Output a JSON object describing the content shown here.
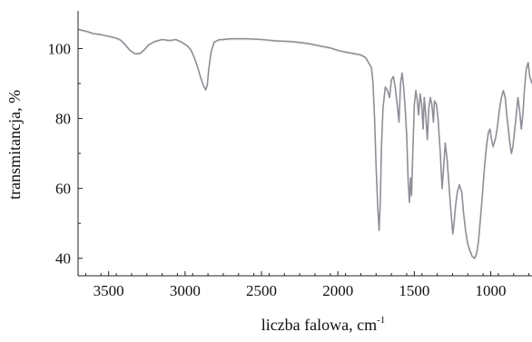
{
  "chart_data": {
    "type": "line",
    "title": "",
    "xlabel": "liczba falowa, cm",
    "xlabel_superscript": "-1",
    "ylabel": "transmitancja, %",
    "x_reversed": true,
    "xlim": [
      3700,
      730
    ],
    "ylim": [
      35,
      110
    ],
    "xticks": [
      3500,
      3000,
      2500,
      2000,
      1500,
      1000
    ],
    "yticks": [
      40,
      60,
      80,
      100
    ],
    "grid": false,
    "legend": "none",
    "series_color": "#8e8e97",
    "series": [
      {
        "points": [
          [
            3700,
            105.5
          ],
          [
            3650,
            105
          ],
          [
            3600,
            104.3
          ],
          [
            3550,
            104
          ],
          [
            3500,
            103.5
          ],
          [
            3450,
            103
          ],
          [
            3420,
            102.4
          ],
          [
            3390,
            101
          ],
          [
            3360,
            99.5
          ],
          [
            3330,
            98.6
          ],
          [
            3300,
            98.5
          ],
          [
            3270,
            99.5
          ],
          [
            3240,
            101
          ],
          [
            3200,
            102
          ],
          [
            3150,
            102.6
          ],
          [
            3100,
            102.3
          ],
          [
            3060,
            102.6
          ],
          [
            3020,
            101.8
          ],
          [
            3000,
            101.2
          ],
          [
            2980,
            100.6
          ],
          [
            2960,
            99.5
          ],
          [
            2940,
            97.5
          ],
          [
            2920,
            95
          ],
          [
            2900,
            92
          ],
          [
            2880,
            89.5
          ],
          [
            2865,
            88.2
          ],
          [
            2855,
            89.5
          ],
          [
            2845,
            94
          ],
          [
            2830,
            99
          ],
          [
            2810,
            101.8
          ],
          [
            2780,
            102.5
          ],
          [
            2700,
            102.8
          ],
          [
            2600,
            102.8
          ],
          [
            2500,
            102.6
          ],
          [
            2400,
            102.2
          ],
          [
            2300,
            102
          ],
          [
            2200,
            101.5
          ],
          [
            2100,
            100.6
          ],
          [
            2050,
            100.2
          ],
          [
            2000,
            99.5
          ],
          [
            1950,
            99
          ],
          [
            1900,
            98.6
          ],
          [
            1850,
            98.2
          ],
          [
            1820,
            97.5
          ],
          [
            1800,
            96
          ],
          [
            1780,
            94.5
          ],
          [
            1770,
            90
          ],
          [
            1760,
            80
          ],
          [
            1750,
            66
          ],
          [
            1740,
            55
          ],
          [
            1730,
            48
          ],
          [
            1722,
            57
          ],
          [
            1715,
            72
          ],
          [
            1705,
            83
          ],
          [
            1690,
            89
          ],
          [
            1675,
            88
          ],
          [
            1662,
            86
          ],
          [
            1650,
            91
          ],
          [
            1637,
            92
          ],
          [
            1625,
            89
          ],
          [
            1612,
            84
          ],
          [
            1600,
            79
          ],
          [
            1590,
            90
          ],
          [
            1580,
            93
          ],
          [
            1570,
            89
          ],
          [
            1560,
            83
          ],
          [
            1550,
            75
          ],
          [
            1540,
            62
          ],
          [
            1532,
            56
          ],
          [
            1525,
            63
          ],
          [
            1518,
            58
          ],
          [
            1510,
            70
          ],
          [
            1500,
            84
          ],
          [
            1490,
            88
          ],
          [
            1480,
            85
          ],
          [
            1472,
            81
          ],
          [
            1462,
            87
          ],
          [
            1452,
            84
          ],
          [
            1442,
            77
          ],
          [
            1435,
            86
          ],
          [
            1425,
            81
          ],
          [
            1415,
            74
          ],
          [
            1405,
            83
          ],
          [
            1395,
            86
          ],
          [
            1385,
            84
          ],
          [
            1375,
            79
          ],
          [
            1368,
            85
          ],
          [
            1355,
            84
          ],
          [
            1345,
            80
          ],
          [
            1330,
            70
          ],
          [
            1318,
            60
          ],
          [
            1308,
            66
          ],
          [
            1298,
            73
          ],
          [
            1285,
            68
          ],
          [
            1272,
            60
          ],
          [
            1260,
            53
          ],
          [
            1248,
            47
          ],
          [
            1240,
            50
          ],
          [
            1230,
            55
          ],
          [
            1218,
            59
          ],
          [
            1205,
            61
          ],
          [
            1190,
            59
          ],
          [
            1178,
            53
          ],
          [
            1165,
            48
          ],
          [
            1150,
            44
          ],
          [
            1135,
            42
          ],
          [
            1120,
            40.5
          ],
          [
            1105,
            40
          ],
          [
            1092,
            41.5
          ],
          [
            1080,
            45
          ],
          [
            1068,
            51
          ],
          [
            1055,
            58
          ],
          [
            1045,
            64
          ],
          [
            1035,
            69
          ],
          [
            1025,
            73
          ],
          [
            1015,
            76
          ],
          [
            1005,
            77
          ],
          [
            995,
            74
          ],
          [
            985,
            72
          ],
          [
            970,
            74
          ],
          [
            958,
            77
          ],
          [
            945,
            82
          ],
          [
            930,
            86
          ],
          [
            918,
            88
          ],
          [
            905,
            86
          ],
          [
            895,
            81
          ],
          [
            885,
            77
          ],
          [
            875,
            73
          ],
          [
            865,
            70
          ],
          [
            855,
            72
          ],
          [
            845,
            76
          ],
          [
            835,
            80
          ],
          [
            822,
            86
          ],
          [
            810,
            82
          ],
          [
            800,
            77
          ],
          [
            790,
            81
          ],
          [
            780,
            88
          ],
          [
            768,
            94
          ],
          [
            755,
            96
          ],
          [
            745,
            92
          ],
          [
            730,
            90
          ]
        ]
      }
    ]
  }
}
